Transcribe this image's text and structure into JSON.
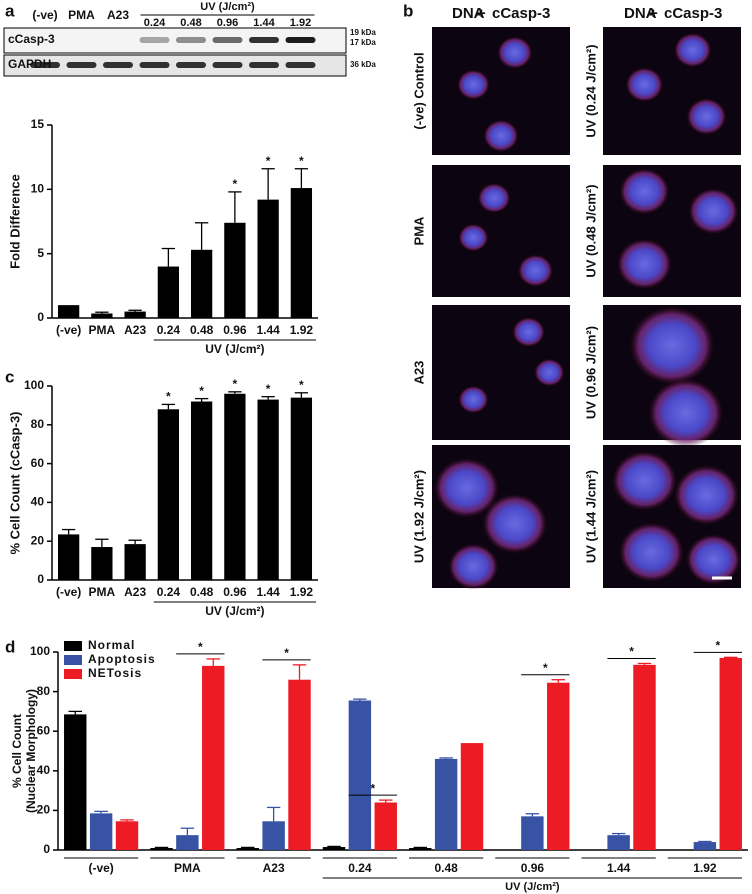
{
  "chart_data": [
    {
      "type": "bar",
      "panel": "a",
      "ylabel": "Fold Difference",
      "categories": [
        "(-ve)",
        "PMA",
        "A23",
        "0.24",
        "0.48",
        "0.96",
        "1.44",
        "1.92"
      ],
      "values": [
        1,
        0.35,
        0.5,
        4.0,
        5.3,
        7.4,
        9.2,
        10.1
      ],
      "errors": [
        0,
        0.1,
        0.1,
        1.4,
        2.1,
        2.4,
        2.4,
        1.5
      ],
      "annotations": [
        null,
        null,
        null,
        null,
        null,
        "*",
        "*",
        "*"
      ],
      "group_label": "UV (J/cm²)",
      "group_span": [
        3,
        7
      ],
      "color": "#000000",
      "ylim": [
        0,
        15
      ],
      "yticks": [
        0,
        5,
        10,
        15
      ]
    },
    {
      "type": "bar",
      "panel": "c",
      "ylabel": "% Cell Count (cCasp-3)",
      "categories": [
        "(-ve)",
        "PMA",
        "A23",
        "0.24",
        "0.48",
        "0.96",
        "1.44",
        "1.92"
      ],
      "values": [
        23.5,
        17,
        18.5,
        88,
        92,
        96,
        93,
        94
      ],
      "errors": [
        2.5,
        4,
        2,
        2.5,
        1.5,
        1,
        1.5,
        2.5
      ],
      "annotations": [
        null,
        null,
        null,
        "*",
        "*",
        "*",
        "*",
        "*"
      ],
      "group_label": "UV (J/cm²)",
      "group_span": [
        3,
        7
      ],
      "color": "#000000",
      "ylim": [
        0,
        100
      ],
      "yticks": [
        0,
        20,
        40,
        60,
        80,
        100
      ]
    },
    {
      "type": "grouped_bar",
      "panel": "d",
      "ylabel": [
        "% Cell Count",
        "(Nuclear Morphology)"
      ],
      "categories": [
        "(-ve)",
        "PMA",
        "A23",
        "0.24",
        "0.48",
        "0.96",
        "1.44",
        "1.92"
      ],
      "series": [
        {
          "name": "Normal",
          "color": "#000000",
          "values": [
            68.5,
            1,
            1,
            1.5,
            1,
            0,
            0,
            0
          ],
          "errors": [
            1.5,
            0.3,
            0.3,
            0.3,
            0.3,
            0,
            0,
            0
          ]
        },
        {
          "name": "Apoptosis",
          "color": "#3953a4",
          "values": [
            18.5,
            7.5,
            14.5,
            75.5,
            46,
            17,
            7.5,
            4
          ],
          "errors": [
            1,
            3.5,
            7,
            0.7,
            0.5,
            1.3,
            0.8,
            0.3
          ]
        },
        {
          "name": "NETosis",
          "color": "#ed1c24",
          "values": [
            14.5,
            93,
            86,
            24,
            54,
            84.5,
            93.5,
            97
          ],
          "errors": [
            0.7,
            3.5,
            7.5,
            1.2,
            0,
            1.5,
            0.7,
            0.3
          ]
        }
      ],
      "annotations": [
        null,
        "*",
        "*",
        "*",
        null,
        "*",
        "*",
        "*"
      ],
      "group_label": "UV (J/cm²)",
      "group_span": [
        3,
        7
      ],
      "legend": "top-left",
      "ylim": [
        0,
        100
      ],
      "yticks": [
        0,
        20,
        40,
        60,
        80,
        100
      ]
    }
  ],
  "blot": {
    "lanes": [
      "(-ve)",
      "PMA",
      "A23"
    ],
    "uv_label": "UV (J/cm²)",
    "uv_doses": [
      "0.24",
      "0.48",
      "0.96",
      "1.44",
      "1.92"
    ],
    "rows": [
      {
        "name": "cCasp-3",
        "sizes": [
          "19 kDa",
          "17 kDa"
        ]
      },
      {
        "name": "GAPDH",
        "sizes": [
          "36 kDa"
        ]
      }
    ]
  },
  "microscopy": {
    "panel": "b",
    "header": [
      "DNA",
      "+",
      "cCasp-3"
    ],
    "left": [
      "(-ve) Control",
      "PMA",
      "A23",
      "UV (1.92 J/cm²)"
    ],
    "right": [
      "UV (0.24 J/cm²)",
      "UV (0.48 J/cm²)",
      "UV (0.96 J/cm²)",
      "UV (1.44 J/cm²)"
    ]
  }
}
